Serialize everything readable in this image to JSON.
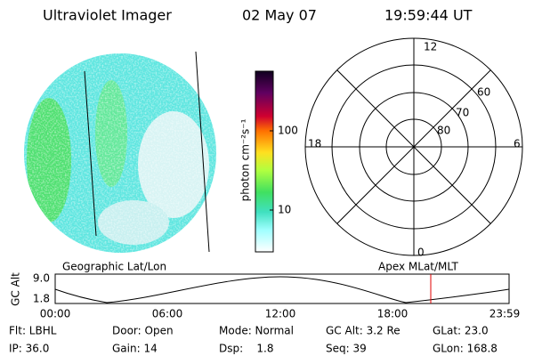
{
  "header": {
    "instrument": "Ultraviolet Imager",
    "date": "02 May 07",
    "time": "19:59:44 UT"
  },
  "colorbar": {
    "label": "photon cm⁻²s⁻¹",
    "ticks": [
      "100",
      "10"
    ]
  },
  "polar": {
    "mlt": {
      "top": "12",
      "bottom": "0",
      "left": "18",
      "right": "6"
    },
    "rings": [
      "60",
      "70",
      "80"
    ]
  },
  "orbit": {
    "left_title": "Geographic Lat/Lon",
    "right_title": "Apex MLat/MLT",
    "axis_label": "GC Alt",
    "yticks": [
      "9.0",
      "1.8"
    ],
    "xticks": [
      "00:00",
      "06:00",
      "12:00",
      "18:00",
      "23:59"
    ]
  },
  "status": {
    "rows": [
      [
        "Flt: LBHL",
        "Door: Open",
        "Mode: Normal",
        "GC Alt: 3.2 Re",
        "GLat: 23.0"
      ],
      [
        "IP: 36.0",
        "Gain: 14",
        "Dsp:    1.8",
        "Seq: 39",
        "GLon: 168.8"
      ]
    ]
  }
}
